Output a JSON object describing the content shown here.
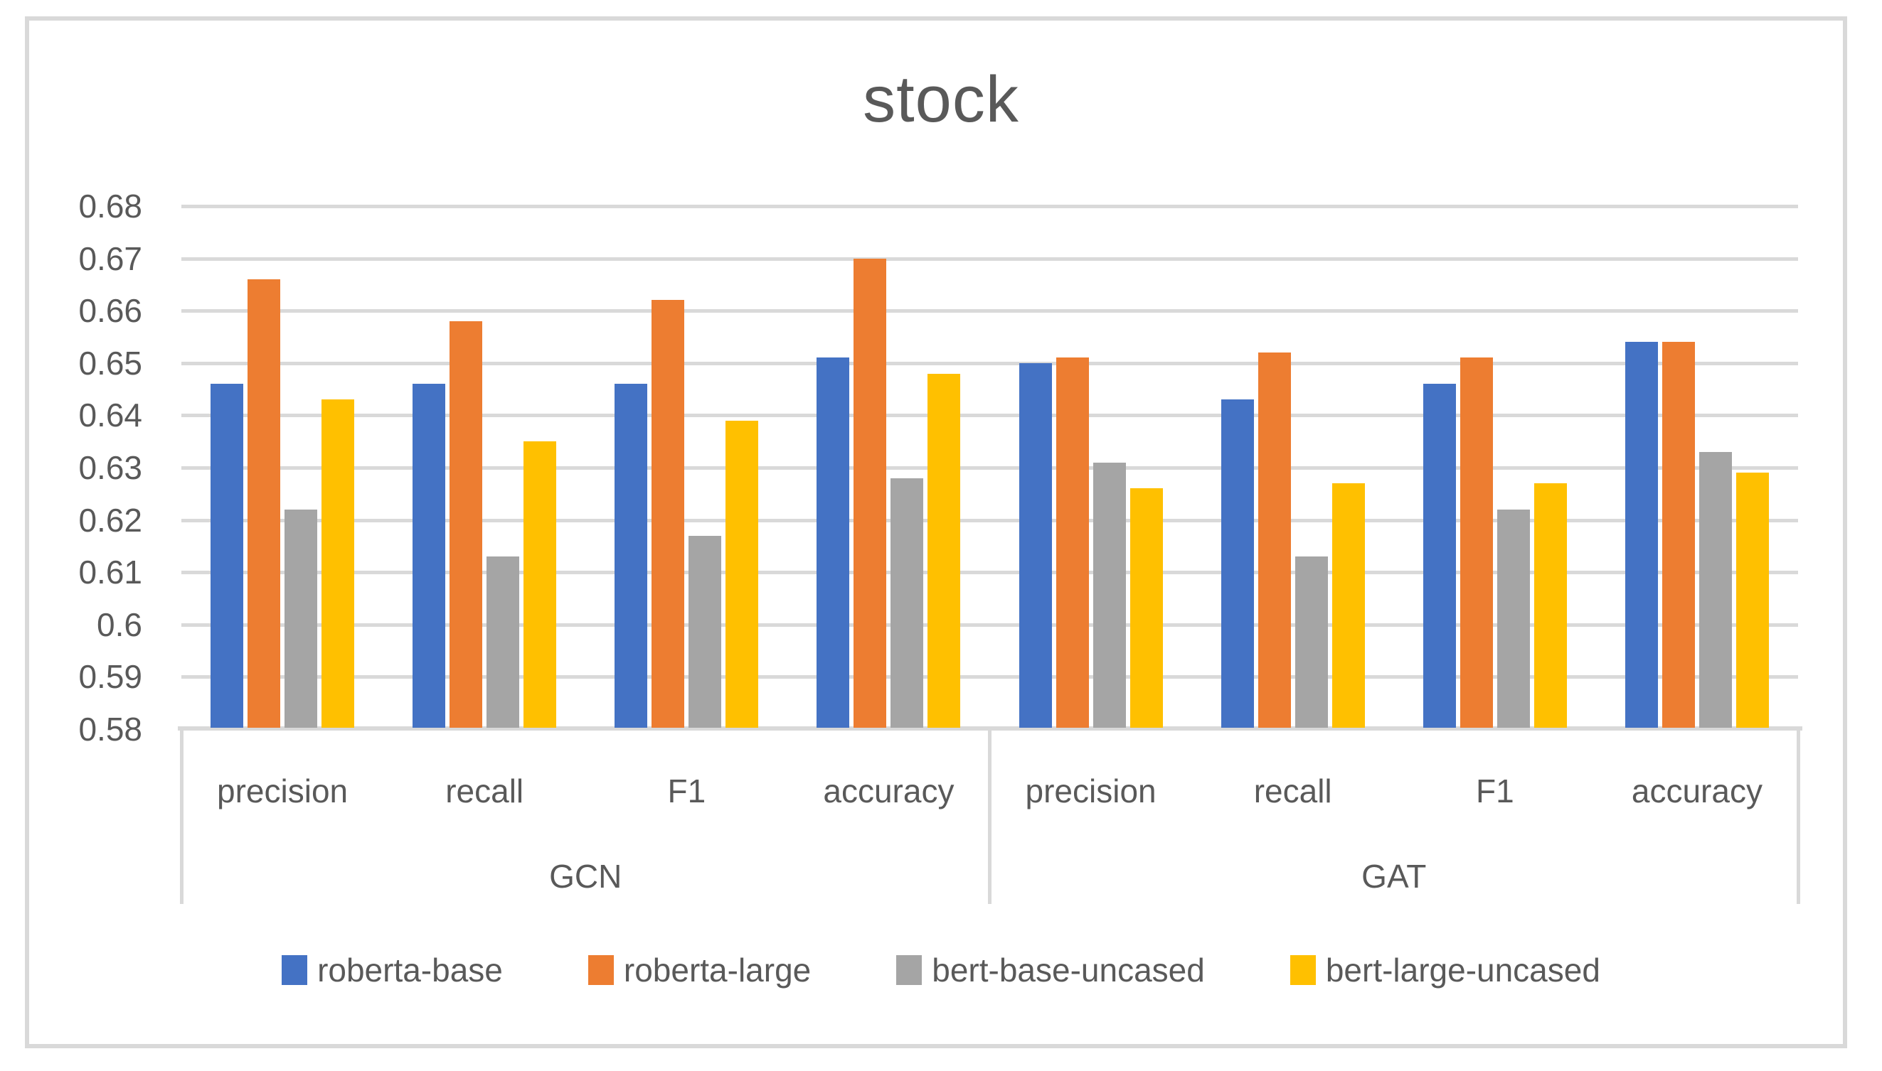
{
  "title": "stock",
  "palette": {
    "text_gray": "#595959",
    "grid_gray": "#d9d9d9",
    "background": "#ffffff"
  },
  "chart_data": {
    "type": "bar",
    "title": "stock",
    "xlabel": "",
    "ylabel": "",
    "ylim": [
      0.58,
      0.68
    ],
    "ytick_step": 0.01,
    "ytick_labels": [
      "0.68",
      "0.67",
      "0.66",
      "0.65",
      "0.64",
      "0.63",
      "0.62",
      "0.61",
      "0.6",
      "0.59",
      "0.58"
    ],
    "grid": true,
    "legend_position": "bottom",
    "groups": [
      {
        "label": "GCN",
        "categories": [
          "precision",
          "recall",
          "F1",
          "accuracy"
        ]
      },
      {
        "label": "GAT",
        "categories": [
          "precision",
          "recall",
          "F1",
          "accuracy"
        ]
      }
    ],
    "series": [
      {
        "name": "roberta-base",
        "color": "#4472C4",
        "values": [
          0.646,
          0.646,
          0.646,
          0.651,
          0.65,
          0.643,
          0.646,
          0.654
        ]
      },
      {
        "name": "roberta-large",
        "color": "#ED7D31",
        "values": [
          0.666,
          0.658,
          0.662,
          0.67,
          0.651,
          0.652,
          0.651,
          0.654
        ]
      },
      {
        "name": "bert-base-uncased",
        "color": "#A5A5A5",
        "values": [
          0.622,
          0.613,
          0.617,
          0.628,
          0.631,
          0.613,
          0.622,
          0.633
        ]
      },
      {
        "name": "bert-large-uncased",
        "color": "#FFC000",
        "values": [
          0.643,
          0.635,
          0.639,
          0.648,
          0.626,
          0.627,
          0.627,
          0.629
        ]
      }
    ]
  }
}
